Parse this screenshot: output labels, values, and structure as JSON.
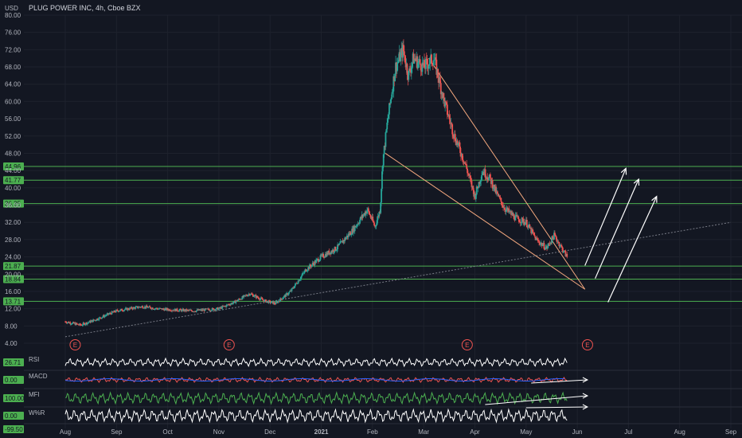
{
  "chart_data": {
    "type": "candlestick",
    "title": "PLUG POWER INC, 4h, Cboe BZX",
    "currency": "USD",
    "y_ticks": [
      4,
      8,
      12,
      16,
      20,
      24,
      28,
      32,
      36,
      40,
      44,
      48,
      52,
      56,
      60,
      64,
      68,
      72,
      76,
      80
    ],
    "y_labels": [
      "4.00",
      "8.00",
      "12.00",
      "16.00",
      "20.00",
      "24.00",
      "28.00",
      "32.00",
      "36.00",
      "40.00",
      "44.00",
      "48.00",
      "52.00",
      "56.00",
      "60.00",
      "64.00",
      "68.00",
      "72.00",
      "76.00",
      "80.00"
    ],
    "x_ticks": [
      "Aug",
      "Sep",
      "Oct",
      "Nov",
      "Dec",
      "2021",
      "Feb",
      "Mar",
      "Apr",
      "May",
      "Jun",
      "Jul",
      "Aug",
      "Sep"
    ],
    "horizontal_levels": [
      {
        "label": "44.96",
        "value": 44.96
      },
      {
        "label": "41.77",
        "value": 41.77
      },
      {
        "label": "36.35",
        "value": 36.35
      },
      {
        "label": "21.87",
        "value": 21.87
      },
      {
        "label": "18.84",
        "value": 18.84
      },
      {
        "label": "13.71",
        "value": 13.71
      }
    ],
    "earnings_marker": "E",
    "earnings_months": [
      "Aug",
      "Nov",
      "Mar",
      "May"
    ],
    "price_path": [
      [
        7,
        9.0
      ],
      [
        7.3,
        8.2
      ],
      [
        7.6,
        9.5
      ],
      [
        8,
        11.5
      ],
      [
        8.5,
        12.5
      ],
      [
        8.8,
        12.0
      ],
      [
        9,
        11.8
      ],
      [
        9.5,
        11.5
      ],
      [
        10,
        12.0
      ],
      [
        10.3,
        13.5
      ],
      [
        10.6,
        15.5
      ],
      [
        10.9,
        13.8
      ],
      [
        11.1,
        13.2
      ],
      [
        11.4,
        16
      ],
      [
        11.7,
        21
      ],
      [
        12,
        24
      ],
      [
        12.3,
        26
      ],
      [
        12.6,
        30
      ],
      [
        12.9,
        35
      ],
      [
        13.05,
        31
      ],
      [
        13.15,
        35
      ],
      [
        13.2,
        46
      ],
      [
        13.3,
        56
      ],
      [
        13.45,
        68
      ],
      [
        13.6,
        72
      ],
      [
        13.7,
        66
      ],
      [
        13.8,
        70
      ],
      [
        14.0,
        68
      ],
      [
        14.2,
        70
      ],
      [
        14.4,
        60
      ],
      [
        14.6,
        52
      ],
      [
        14.8,
        46
      ],
      [
        15.0,
        38
      ],
      [
        15.15,
        44
      ],
      [
        15.3,
        42
      ],
      [
        15.45,
        38
      ],
      [
        15.6,
        35
      ],
      [
        15.8,
        33
      ],
      [
        16.0,
        32
      ],
      [
        16.2,
        28
      ],
      [
        16.4,
        26
      ],
      [
        16.55,
        29
      ],
      [
        16.7,
        26
      ],
      [
        16.8,
        24
      ]
    ],
    "indicators": [
      {
        "name": "RSI",
        "value_label": "26.71"
      },
      {
        "name": "MACD",
        "value_label": "0.00"
      },
      {
        "name": "MFI",
        "value_label": "100.00"
      },
      {
        "name": "W%R",
        "value_label": "0.00"
      }
    ],
    "bottom_label": "-99.50"
  }
}
